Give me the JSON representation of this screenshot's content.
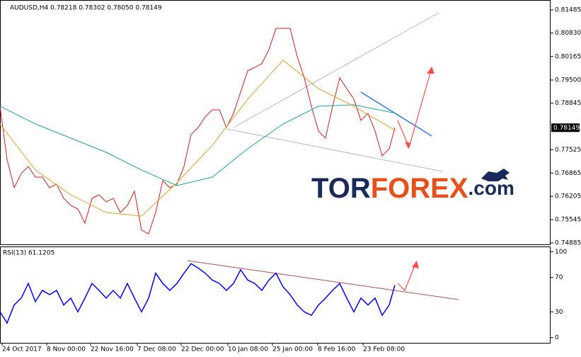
{
  "chart_data": [
    {
      "type": "line",
      "title": "AUDUSD,H4  0.78218 0.78302 0.78050 0.78149",
      "annotations": [
        "TOR",
        "FOREX",
        ".com"
      ],
      "x": [
        0,
        10,
        20,
        30,
        40,
        50,
        60,
        70,
        80,
        90,
        100,
        110,
        120,
        130,
        140,
        150,
        160,
        170,
        180,
        190,
        200,
        210,
        220,
        230,
        240,
        250,
        260,
        270,
        280,
        290,
        300,
        310,
        320,
        330,
        340,
        350,
        360,
        370,
        380,
        390,
        400,
        410,
        420,
        430,
        440,
        450,
        460,
        470,
        480,
        490,
        500,
        510,
        520,
        530,
        540,
        550,
        558
      ],
      "xlim": [
        0,
        778
      ],
      "ylim": [
        0.74845,
        0.81726
      ],
      "yticks": [
        0.81485,
        {
          "value": 0.8083,
          "label": "0.80830"
        },
        0.80165,
        {
          "value": 0.795,
          "label": "0.79500"
        },
        0.78845,
        0.77525,
        0.76865,
        0.76205,
        0.75545,
        0.74885
      ],
      "last_price": 0.78149,
      "series": [
        {
          "color": "#d02020",
          "values": [
            0.78757,
            0.77252,
            0.7645,
            0.76851,
            0.77052,
            0.76751,
            0.76751,
            0.7645,
            0.7655,
            0.76149,
            0.75948,
            0.75848,
            0.75447,
            0.76149,
            0.76249,
            0.76049,
            0.76149,
            0.75748,
            0.75948,
            0.7635,
            0.75246,
            0.75146,
            0.75748,
            0.76651,
            0.7645,
            0.7655,
            0.77052,
            0.77954,
            0.78155,
            0.78456,
            0.78656,
            0.78656,
            0.78155,
            0.78556,
            0.79158,
            0.7976,
            0.7986,
            0.7996,
            0.80362,
            0.80963,
            0.80963,
            0.80963,
            0.80161,
            0.79559,
            0.78757,
            0.78055,
            0.77854,
            0.78757,
            0.79559,
            0.79258,
            0.78957,
            0.78356,
            0.78556,
            0.78055,
            0.77353,
            0.77553,
            0.78149
          ]
        },
        {
          "color": "#20a0a0",
          "x": [
            0,
            50,
            100,
            150,
            200,
            250,
            300,
            350,
            400,
            450,
            500,
            560
          ],
          "values": [
            0.78757,
            0.78255,
            0.77854,
            0.77453,
            0.76951,
            0.7651,
            0.76751,
            0.77553,
            0.78255,
            0.78757,
            0.78797,
            0.78556
          ]
        },
        {
          "color": "#e0a030",
          "x": [
            0,
            50,
            100,
            150,
            200,
            250,
            300,
            350,
            400,
            450,
            500,
            560
          ],
          "values": [
            0.78255,
            0.76951,
            0.76249,
            0.75748,
            0.75648,
            0.7659,
            0.77653,
            0.78957,
            0.80061,
            0.79258,
            0.78757,
            0.78055
          ]
        }
      ]
    },
    {
      "type": "line",
      "title": "RSI(13) 61.1205",
      "x": [
        0,
        10,
        20,
        30,
        40,
        50,
        60,
        70,
        80,
        90,
        100,
        110,
        120,
        130,
        140,
        150,
        160,
        170,
        180,
        190,
        200,
        210,
        220,
        230,
        240,
        250,
        260,
        270,
        280,
        290,
        300,
        310,
        320,
        330,
        340,
        350,
        360,
        370,
        380,
        390,
        400,
        410,
        420,
        430,
        440,
        450,
        460,
        470,
        480,
        490,
        500,
        510,
        520,
        530,
        540,
        550,
        558
      ],
      "xlim": [
        0,
        778
      ],
      "xticks": [
        {
          "value": 3,
          "label": "24 Oct 2017"
        },
        {
          "value": 66,
          "label": "8 Nov 00:00"
        },
        {
          "value": 128,
          "label": "22 Nov 16:00"
        },
        {
          "value": 194,
          "label": "7 Dec 08:00"
        },
        {
          "value": 256,
          "label": "22 Dec 00:00"
        },
        {
          "value": 322,
          "label": "10 Jan 08:00"
        },
        {
          "value": 385,
          "label": "25 Jan 00:00"
        },
        {
          "value": 449,
          "label": "8 Feb 16:00"
        },
        {
          "value": 513,
          "label": "23 Feb 08:00"
        }
      ],
      "ylim": [
        -6,
        106
      ],
      "yticks": [
        100,
        70,
        30,
        0
      ],
      "series": [
        {
          "color": "#0000ff",
          "values": [
            30,
            17,
            38,
            46,
            63,
            42,
            55,
            50,
            55,
            38,
            46,
            30,
            46,
            63,
            55,
            46,
            55,
            46,
            63,
            46,
            30,
            46,
            75,
            63,
            55,
            63,
            75,
            86,
            81,
            75,
            67,
            63,
            55,
            63,
            79,
            67,
            63,
            55,
            67,
            75,
            59,
            50,
            38,
            30,
            26,
            38,
            46,
            55,
            63,
            46,
            30,
            46,
            38,
            46,
            26,
            38,
            61.1205
          ]
        }
      ]
    }
  ]
}
